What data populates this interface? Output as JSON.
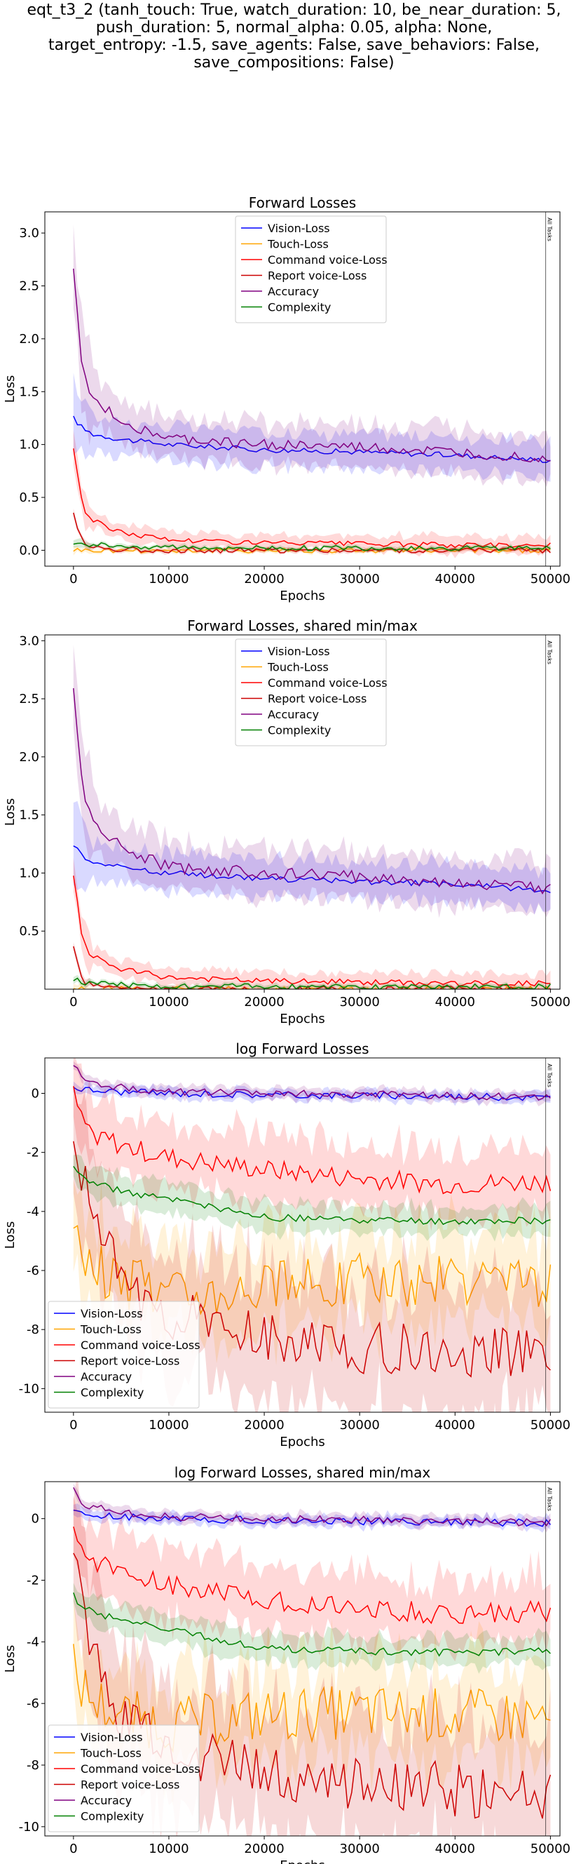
{
  "suptitle": [
    "eqt_t3_2 (tanh_touch: True, watch_duration: 10, be_near_duration: 5,",
    "push_duration: 5, normal_alpha: 0.05, alpha: None,",
    "target_entropy: -1.5, save_agents: False, save_behaviors: False,",
    "save_compositions: False)"
  ],
  "colors": {
    "Vision-Loss": "#0000ff",
    "Touch-Loss": "#ffa500",
    "Command voice-Loss": "#ff0000",
    "Report voice-Loss": "#cc0000",
    "Accuracy": "#800080",
    "Complexity": "#008000"
  },
  "chart_data": [
    {
      "type": "line",
      "title": "Forward Losses",
      "xlabel": "Epochs",
      "ylabel": "Loss",
      "xlim": [
        -3000,
        51000
      ],
      "ylim": [
        -0.15,
        3.2
      ],
      "xticks": [
        0,
        10000,
        20000,
        30000,
        40000,
        50000
      ],
      "yticks": [
        0.0,
        0.5,
        1.0,
        1.5,
        2.0,
        2.5,
        3.0
      ],
      "legend": "top-center",
      "vline": {
        "x": 49500,
        "label": "All Tasks"
      },
      "series": [
        {
          "name": "Vision-Loss",
          "x": [
            0,
            1000,
            2000,
            5000,
            10000,
            20000,
            30000,
            40000,
            50000
          ],
          "y": [
            1.25,
            1.15,
            1.1,
            1.05,
            1.0,
            0.95,
            0.93,
            0.9,
            0.85
          ]
        },
        {
          "name": "Touch-Loss",
          "x": [
            0,
            1000,
            2000,
            5000,
            10000,
            20000,
            30000,
            40000,
            50000
          ],
          "y": [
            0.01,
            0.0,
            0.0,
            0.0,
            0.0,
            0.0,
            0.0,
            0.0,
            0.0
          ]
        },
        {
          "name": "Command voice-Loss",
          "x": [
            0,
            1000,
            2000,
            5000,
            10000,
            20000,
            30000,
            40000,
            50000
          ],
          "y": [
            0.97,
            0.4,
            0.28,
            0.17,
            0.1,
            0.07,
            0.06,
            0.05,
            0.05
          ]
        },
        {
          "name": "Report voice-Loss",
          "x": [
            0,
            1000,
            2000,
            5000,
            10000,
            20000,
            30000,
            40000,
            50000
          ],
          "y": [
            0.35,
            0.06,
            0.03,
            0.01,
            0.0,
            0.0,
            0.0,
            0.0,
            0.0
          ]
        },
        {
          "name": "Accuracy",
          "x": [
            0,
            1000,
            2000,
            5000,
            10000,
            20000,
            30000,
            40000,
            50000
          ],
          "y": [
            2.63,
            1.65,
            1.45,
            1.22,
            1.05,
            1.0,
            0.97,
            0.92,
            0.87
          ]
        },
        {
          "name": "Complexity",
          "x": [
            0,
            1000,
            2000,
            5000,
            10000,
            20000,
            30000,
            40000,
            50000
          ],
          "y": [
            0.08,
            0.06,
            0.05,
            0.04,
            0.03,
            0.02,
            0.02,
            0.02,
            0.02
          ]
        }
      ]
    },
    {
      "type": "line",
      "title": "Forward Losses, shared min/max",
      "xlabel": "Epochs",
      "ylabel": "Loss",
      "xlim": [
        -3000,
        51000
      ],
      "ylim": [
        0.0,
        3.05
      ],
      "xticks": [
        0,
        10000,
        20000,
        30000,
        40000,
        50000
      ],
      "yticks": [
        0.5,
        1.0,
        1.5,
        2.0,
        2.5,
        3.0
      ],
      "legend": "top-center",
      "vline": {
        "x": 49500,
        "label": "All Tasks"
      },
      "series": [
        {
          "name": "Vision-Loss",
          "x": [
            0,
            1000,
            2000,
            5000,
            10000,
            20000,
            30000,
            40000,
            50000
          ],
          "y": [
            1.25,
            1.15,
            1.1,
            1.05,
            1.0,
            0.95,
            0.93,
            0.9,
            0.85
          ]
        },
        {
          "name": "Touch-Loss",
          "x": [
            0,
            1000,
            2000,
            5000,
            10000,
            20000,
            30000,
            40000,
            50000
          ],
          "y": [
            0.01,
            0.0,
            0.0,
            0.0,
            0.0,
            0.0,
            0.0,
            0.0,
            0.0
          ]
        },
        {
          "name": "Command voice-Loss",
          "x": [
            0,
            1000,
            2000,
            5000,
            10000,
            20000,
            30000,
            40000,
            50000
          ],
          "y": [
            0.97,
            0.4,
            0.28,
            0.17,
            0.1,
            0.07,
            0.06,
            0.05,
            0.05
          ]
        },
        {
          "name": "Report voice-Loss",
          "x": [
            0,
            1000,
            2000,
            5000,
            10000,
            20000,
            30000,
            40000,
            50000
          ],
          "y": [
            0.35,
            0.06,
            0.03,
            0.01,
            0.0,
            0.0,
            0.0,
            0.0,
            0.0
          ]
        },
        {
          "name": "Accuracy",
          "x": [
            0,
            1000,
            2000,
            5000,
            10000,
            20000,
            30000,
            40000,
            50000
          ],
          "y": [
            2.63,
            1.65,
            1.45,
            1.22,
            1.05,
            1.0,
            0.97,
            0.92,
            0.87
          ]
        },
        {
          "name": "Complexity",
          "x": [
            0,
            1000,
            2000,
            5000,
            10000,
            20000,
            30000,
            40000,
            50000
          ],
          "y": [
            0.08,
            0.06,
            0.05,
            0.04,
            0.03,
            0.02,
            0.02,
            0.02,
            0.02
          ]
        }
      ]
    },
    {
      "type": "line",
      "title": "log Forward Losses",
      "xlabel": "Epochs",
      "ylabel": "Loss",
      "xlim": [
        -3000,
        51000
      ],
      "ylim": [
        -10.8,
        1.2
      ],
      "xticks": [
        0,
        10000,
        20000,
        30000,
        40000,
        50000
      ],
      "yticks": [
        0,
        -2,
        -4,
        -6,
        -8,
        -10
      ],
      "legend": "bottom-left",
      "vline": {
        "x": 49500,
        "label": "All Tasks"
      },
      "series": [
        {
          "name": "Vision-Loss",
          "x": [
            0,
            1000,
            2000,
            5000,
            10000,
            20000,
            30000,
            40000,
            50000
          ],
          "y": [
            0.22,
            0.14,
            0.1,
            0.05,
            0.0,
            -0.05,
            -0.08,
            -0.1,
            -0.15
          ]
        },
        {
          "name": "Touch-Loss",
          "x": [
            0,
            1000,
            2000,
            5000,
            10000,
            20000,
            30000,
            40000,
            50000
          ],
          "y": [
            -4.9,
            -5.5,
            -5.9,
            -6.4,
            -6.7,
            -6.4,
            -6.3,
            -6.4,
            -6.5
          ]
        },
        {
          "name": "Command voice-Loss",
          "x": [
            0,
            1000,
            2000,
            5000,
            10000,
            20000,
            30000,
            40000,
            50000
          ],
          "y": [
            -0.05,
            -1.0,
            -1.3,
            -1.8,
            -2.2,
            -2.6,
            -2.9,
            -3.1,
            -3.0
          ]
        },
        {
          "name": "Report voice-Loss",
          "x": [
            0,
            1000,
            2000,
            5000,
            10000,
            20000,
            30000,
            40000,
            50000
          ],
          "y": [
            -1.0,
            -3.0,
            -4.3,
            -6.3,
            -7.5,
            -8.3,
            -8.6,
            -8.8,
            -8.9
          ]
        },
        {
          "name": "Accuracy",
          "x": [
            0,
            1000,
            2000,
            5000,
            10000,
            20000,
            30000,
            40000,
            50000
          ],
          "y": [
            0.97,
            0.5,
            0.37,
            0.2,
            0.05,
            0.0,
            -0.03,
            -0.08,
            -0.14
          ]
        },
        {
          "name": "Complexity",
          "x": [
            0,
            1000,
            2000,
            5000,
            10000,
            20000,
            30000,
            40000,
            50000
          ],
          "y": [
            -2.5,
            -2.9,
            -3.05,
            -3.3,
            -3.6,
            -4.2,
            -4.3,
            -4.35,
            -4.3
          ]
        }
      ]
    },
    {
      "type": "line",
      "title": "log Forward Losses, shared min/max",
      "xlabel": "Epochs",
      "ylabel": "Loss",
      "xlim": [
        -3000,
        51000
      ],
      "ylim": [
        -10.3,
        1.2
      ],
      "xticks": [
        0,
        10000,
        20000,
        30000,
        40000,
        50000
      ],
      "yticks": [
        0,
        -2,
        -4,
        -6,
        -8,
        -10
      ],
      "legend": "bottom-left",
      "vline": {
        "x": 49500,
        "label": "All Tasks"
      },
      "series": [
        {
          "name": "Vision-Loss",
          "x": [
            0,
            1000,
            2000,
            5000,
            10000,
            20000,
            30000,
            40000,
            50000
          ],
          "y": [
            0.22,
            0.14,
            0.1,
            0.05,
            0.0,
            -0.05,
            -0.08,
            -0.1,
            -0.15
          ]
        },
        {
          "name": "Touch-Loss",
          "x": [
            0,
            1000,
            2000,
            5000,
            10000,
            20000,
            30000,
            40000,
            50000
          ],
          "y": [
            -4.9,
            -5.5,
            -5.9,
            -6.4,
            -6.7,
            -6.4,
            -6.3,
            -6.4,
            -6.5
          ]
        },
        {
          "name": "Command voice-Loss",
          "x": [
            0,
            1000,
            2000,
            5000,
            10000,
            20000,
            30000,
            40000,
            50000
          ],
          "y": [
            -0.05,
            -1.0,
            -1.3,
            -1.8,
            -2.2,
            -2.6,
            -2.9,
            -3.1,
            -3.0
          ]
        },
        {
          "name": "Report voice-Loss",
          "x": [
            0,
            1000,
            2000,
            5000,
            10000,
            20000,
            30000,
            40000,
            50000
          ],
          "y": [
            -1.0,
            -3.0,
            -4.3,
            -6.3,
            -7.5,
            -8.3,
            -8.6,
            -8.8,
            -8.9
          ]
        },
        {
          "name": "Accuracy",
          "x": [
            0,
            1000,
            2000,
            5000,
            10000,
            20000,
            30000,
            40000,
            50000
          ],
          "y": [
            0.97,
            0.5,
            0.37,
            0.2,
            0.05,
            0.0,
            -0.03,
            -0.08,
            -0.14
          ]
        },
        {
          "name": "Complexity",
          "x": [
            0,
            1000,
            2000,
            5000,
            10000,
            20000,
            30000,
            40000,
            50000
          ],
          "y": [
            -2.5,
            -2.9,
            -3.05,
            -3.3,
            -3.6,
            -4.2,
            -4.3,
            -4.35,
            -4.3
          ]
        }
      ]
    }
  ]
}
